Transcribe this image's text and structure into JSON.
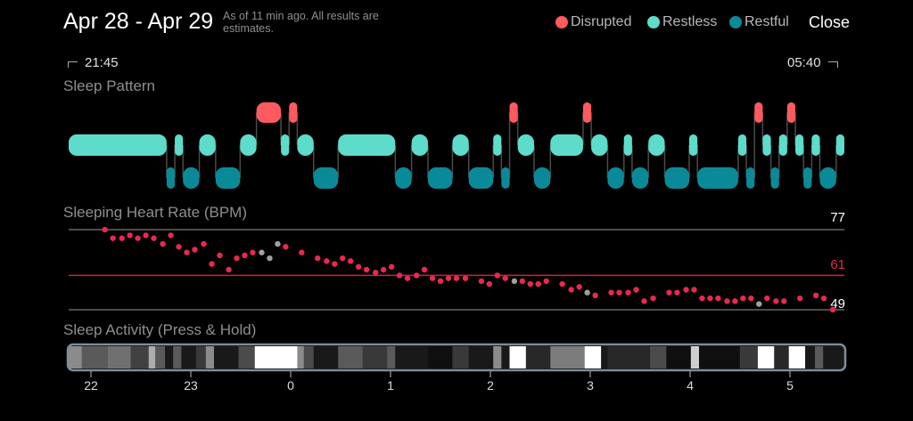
{
  "header": {
    "title": "Apr 28 - Apr 29",
    "subtitle": "As of 11 min ago. All results are estimates.",
    "close_label": "Close"
  },
  "legend": [
    {
      "label": "Disrupted",
      "color": "#ff5a5f"
    },
    {
      "label": "Restless",
      "color": "#5ddccb"
    },
    {
      "label": "Restful",
      "color": "#0a8a98"
    }
  ],
  "range": {
    "start": "21:45",
    "end": "05:40",
    "start_icon": "corner-bracket-left-icon",
    "end_icon": "corner-bracket-right-icon"
  },
  "sections": {
    "pattern": "Sleep Pattern",
    "heart_rate": "Sleeping Heart Rate (BPM)",
    "activity": "Sleep Activity (Press & Hold)"
  },
  "chart_data": [
    {
      "type": "timeline",
      "title": "Sleep Pattern",
      "x_unit": "minutes since 21:45",
      "x_range": [
        0,
        475
      ],
      "segments": [
        [
          "Restless",
          0,
          60
        ],
        [
          "Restful",
          60,
          65
        ],
        [
          "Restless",
          65,
          70
        ],
        [
          "Restful",
          70,
          80
        ],
        [
          "Restless",
          80,
          90
        ],
        [
          "Restful",
          90,
          105
        ],
        [
          "Restless",
          105,
          115
        ],
        [
          "Disrupted",
          115,
          130
        ],
        [
          "Restless",
          130,
          135
        ],
        [
          "Disrupted",
          135,
          140
        ],
        [
          "Restless",
          140,
          150
        ],
        [
          "Restful",
          150,
          165
        ],
        [
          "Restless",
          165,
          200
        ],
        [
          "Restful",
          200,
          210
        ],
        [
          "Restless",
          210,
          220
        ],
        [
          "Restful",
          220,
          235
        ],
        [
          "Restless",
          235,
          245
        ],
        [
          "Restful",
          245,
          260
        ],
        [
          "Restless",
          260,
          265
        ],
        [
          "Restful",
          265,
          270
        ],
        [
          "Disrupted",
          270,
          275
        ],
        [
          "Restless",
          275,
          285
        ],
        [
          "Restful",
          285,
          295
        ],
        [
          "Restless",
          295,
          315
        ],
        [
          "Disrupted",
          315,
          320
        ],
        [
          "Restless",
          320,
          330
        ],
        [
          "Restful",
          330,
          340
        ],
        [
          "Restless",
          340,
          345
        ],
        [
          "Restful",
          345,
          355
        ],
        [
          "Restless",
          355,
          365
        ],
        [
          "Restful",
          365,
          380
        ],
        [
          "Restless",
          380,
          385
        ],
        [
          "Restful",
          385,
          410
        ],
        [
          "Restless",
          410,
          415
        ],
        [
          "Restful",
          415,
          420
        ],
        [
          "Disrupted",
          420,
          425
        ],
        [
          "Restless",
          425,
          430
        ],
        [
          "Restful",
          430,
          435
        ],
        [
          "Restless",
          435,
          440
        ],
        [
          "Disrupted",
          440,
          445
        ],
        [
          "Restless",
          445,
          450
        ],
        [
          "Restful",
          450,
          455
        ],
        [
          "Restless",
          455,
          460
        ],
        [
          "Restful",
          460,
          470
        ],
        [
          "Restless",
          470,
          475
        ]
      ]
    },
    {
      "type": "scatter",
      "title": "Sleeping Heart Rate (BPM)",
      "x_unit": "hours since 22:00",
      "ylim": [
        49,
        77
      ],
      "reference_lines": [
        {
          "value": 77,
          "label": "77",
          "color": "#666666"
        },
        {
          "value": 61,
          "label": "61",
          "color": "#d21f45"
        },
        {
          "value": 49,
          "label": "49",
          "color": "#666666"
        }
      ],
      "point_color": "#e8294f",
      "missing_color": "#a0a0a0",
      "points": [
        [
          0.14,
          77
        ],
        [
          0.22,
          74
        ],
        [
          0.31,
          74
        ],
        [
          0.39,
          75
        ],
        [
          0.47,
          74
        ],
        [
          0.55,
          75
        ],
        [
          0.63,
          74
        ],
        [
          0.72,
          72
        ],
        [
          0.8,
          75
        ],
        [
          0.88,
          71
        ],
        [
          0.96,
          69
        ],
        [
          1.04,
          70
        ],
        [
          1.13,
          72
        ],
        [
          1.21,
          65
        ],
        [
          1.29,
          68
        ],
        [
          1.38,
          63
        ],
        [
          1.46,
          67
        ],
        [
          1.54,
          68
        ],
        [
          1.62,
          69
        ],
        [
          1.71,
          69,
          "gray"
        ],
        [
          1.79,
          67,
          "gray"
        ],
        [
          1.87,
          72,
          "gray"
        ],
        [
          1.95,
          71
        ],
        [
          2.11,
          69
        ],
        [
          2.27,
          67
        ],
        [
          2.36,
          66
        ],
        [
          2.44,
          65
        ],
        [
          2.52,
          67
        ],
        [
          2.6,
          66
        ],
        [
          2.68,
          64
        ],
        [
          2.76,
          63
        ],
        [
          2.85,
          62
        ],
        [
          2.93,
          63
        ],
        [
          3.01,
          64
        ],
        [
          3.09,
          61
        ],
        [
          3.17,
          60
        ],
        [
          3.26,
          61
        ],
        [
          3.34,
          63
        ],
        [
          3.42,
          60
        ],
        [
          3.5,
          59
        ],
        [
          3.58,
          60
        ],
        [
          3.66,
          60
        ],
        [
          3.75,
          60
        ],
        [
          3.91,
          59
        ],
        [
          3.99,
          58
        ],
        [
          4.07,
          61
        ],
        [
          4.15,
          60
        ],
        [
          4.24,
          59,
          "gray"
        ],
        [
          4.32,
          59
        ],
        [
          4.4,
          58
        ],
        [
          4.48,
          58
        ],
        [
          4.56,
          59
        ],
        [
          4.72,
          58
        ],
        [
          4.81,
          56
        ],
        [
          4.89,
          57
        ],
        [
          4.97,
          55,
          "gray"
        ],
        [
          5.05,
          54
        ],
        [
          5.21,
          55
        ],
        [
          5.29,
          55
        ],
        [
          5.38,
          55
        ],
        [
          5.46,
          56
        ],
        [
          5.54,
          52
        ],
        [
          5.63,
          53
        ],
        [
          5.79,
          55
        ],
        [
          5.87,
          55
        ],
        [
          5.96,
          56
        ],
        [
          6.04,
          56
        ],
        [
          6.12,
          53
        ],
        [
          6.2,
          53
        ],
        [
          6.28,
          53
        ],
        [
          6.37,
          52
        ],
        [
          6.45,
          52
        ],
        [
          6.53,
          53
        ],
        [
          6.61,
          53
        ],
        [
          6.69,
          51,
          "gray"
        ],
        [
          6.77,
          53
        ],
        [
          6.86,
          52
        ],
        [
          6.94,
          52
        ],
        [
          7.1,
          53
        ],
        [
          7.26,
          54
        ],
        [
          7.34,
          53
        ],
        [
          7.43,
          49
        ]
      ]
    },
    {
      "type": "heatmap",
      "title": "Sleep Activity (Press & Hold)",
      "x_unit": "minutes since 21:45",
      "x_ticks": [
        "22",
        "23",
        "0",
        "1",
        "2",
        "3",
        "4",
        "5"
      ],
      "x_tick_hours_since_22": [
        0,
        1,
        2,
        3,
        4,
        5,
        6,
        7
      ],
      "segments": [
        [
          0,
          8,
          0.53
        ],
        [
          8,
          24,
          0.33
        ],
        [
          24,
          38,
          0.42
        ],
        [
          38,
          49,
          0.23
        ],
        [
          49,
          53,
          0.67
        ],
        [
          53,
          59,
          0.33
        ],
        [
          59,
          64,
          0.07
        ],
        [
          64,
          69,
          0.33
        ],
        [
          69,
          78,
          0.07
        ],
        [
          78,
          84,
          0.2
        ],
        [
          84,
          89,
          0.53
        ],
        [
          89,
          104,
          0.07
        ],
        [
          104,
          114,
          0.27
        ],
        [
          114,
          140,
          1
        ],
        [
          140,
          144,
          0.53
        ],
        [
          144,
          150,
          0.27
        ],
        [
          150,
          165,
          0.07
        ],
        [
          165,
          180,
          0.33
        ],
        [
          180,
          195,
          0.2
        ],
        [
          195,
          200,
          0.33
        ],
        [
          200,
          220,
          0.07
        ],
        [
          220,
          235,
          0.03
        ],
        [
          235,
          245,
          0.2
        ],
        [
          245,
          260,
          0.07
        ],
        [
          260,
          265,
          0.53
        ],
        [
          265,
          270,
          0.07
        ],
        [
          270,
          280,
          1
        ],
        [
          280,
          295,
          0.13
        ],
        [
          295,
          316,
          0.47
        ],
        [
          316,
          326,
          1
        ],
        [
          326,
          330,
          0.07
        ],
        [
          330,
          356,
          0.13
        ],
        [
          356,
          366,
          0.27
        ],
        [
          366,
          381,
          0.03
        ],
        [
          381,
          386,
          0.8
        ],
        [
          386,
          411,
          0.03
        ],
        [
          411,
          422,
          0.2
        ],
        [
          422,
          432,
          1
        ],
        [
          432,
          441,
          0.13
        ],
        [
          441,
          451,
          1
        ],
        [
          451,
          457,
          0.07
        ],
        [
          457,
          462,
          0.33
        ],
        [
          462,
          475,
          0.07
        ]
      ]
    }
  ]
}
